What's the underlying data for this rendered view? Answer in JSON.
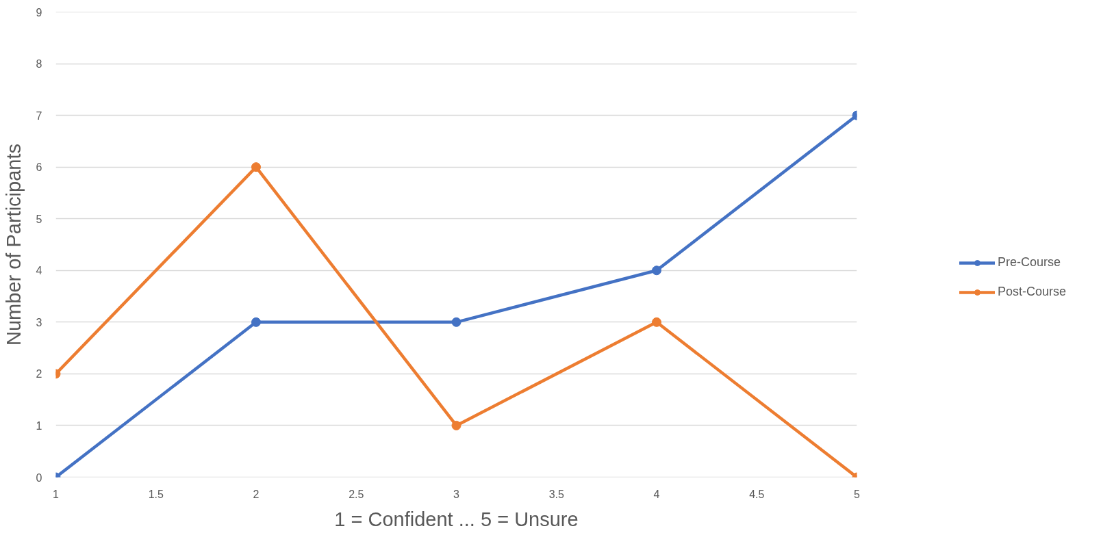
{
  "chart_data": {
    "type": "line",
    "xlabel": "1 = Confident ... 5 = Unsure",
    "ylabel": "Number of Participants",
    "x": [
      1,
      2,
      3,
      4,
      5
    ],
    "series": [
      {
        "name": "Pre-Course",
        "color": "#4472c4",
        "values": [
          0,
          3,
          3,
          4,
          7
        ]
      },
      {
        "name": "Post-Course",
        "color": "#ed7d31",
        "values": [
          2,
          6,
          1,
          3,
          0
        ]
      }
    ],
    "xlim": [
      1,
      5
    ],
    "xticks": [
      1,
      1.5,
      2,
      2.5,
      3,
      3.5,
      4,
      4.5,
      5
    ],
    "ylim": [
      0,
      9
    ],
    "yticks": [
      0,
      1,
      2,
      3,
      4,
      5,
      6,
      7,
      8,
      9
    ],
    "grid": "y",
    "legend": "right",
    "marker": "circle",
    "line_style": "solid"
  }
}
